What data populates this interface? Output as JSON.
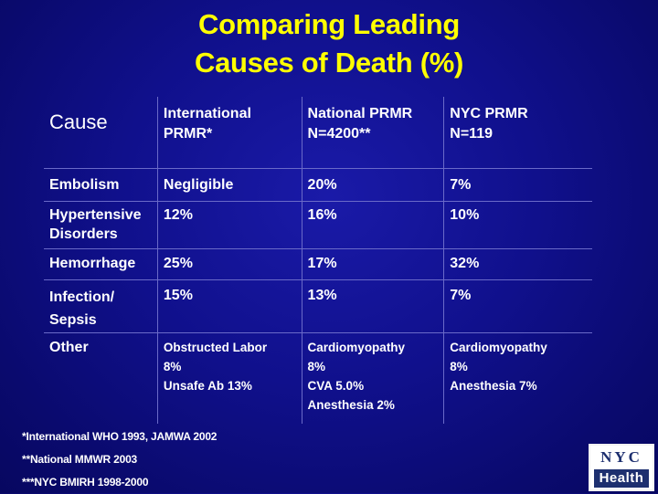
{
  "title": {
    "line1": "Comparing Leading",
    "line2": "Causes of Death (%)"
  },
  "table": {
    "headers": {
      "cause": "Cause",
      "col1": [
        "International",
        "PRMR*"
      ],
      "col2": [
        "National PRMR",
        "N=4200**"
      ],
      "col3": [
        "NYC PRMR",
        "N=119"
      ]
    },
    "rows": [
      {
        "cause": [
          "Embolism"
        ],
        "col1": [
          "Negligible"
        ],
        "col2": [
          "20%"
        ],
        "col3": [
          "7%"
        ]
      },
      {
        "cause": [
          "Hypertensive",
          "Disorders"
        ],
        "col1": [
          "12%"
        ],
        "col2": [
          "16%"
        ],
        "col3": [
          "10%"
        ]
      },
      {
        "cause": [
          "Hemorrhage"
        ],
        "col1": [
          "25%"
        ],
        "col2": [
          "17%"
        ],
        "col3": [
          "32%"
        ]
      },
      {
        "cause": [
          "Infection/",
          "Sepsis"
        ],
        "col1": [
          "15%"
        ],
        "col2": [
          "13%"
        ],
        "col3": [
          "7%"
        ]
      },
      {
        "cause": [
          "Other"
        ],
        "col1": [
          "Obstructed Labor",
          "8%",
          "Unsafe Ab 13%"
        ],
        "col2": [
          "Cardiomyopathy",
          "8%",
          "CVA 5.0%",
          "Anesthesia 2%"
        ],
        "col3": [
          "Cardiomyopathy",
          "8%",
          "Anesthesia 7%"
        ]
      }
    ]
  },
  "footnotes": [
    "*International WHO 1993, JAMWA 2002",
    "**National MMWR 2003",
    "***NYC BMIRH 1998-2000"
  ],
  "logo": {
    "top": "NYC",
    "bottom": "Health"
  },
  "colors": {
    "title": "#ffff00",
    "background": "#10108c",
    "text": "#ffffff",
    "logo_blue": "#1d2f6f"
  }
}
